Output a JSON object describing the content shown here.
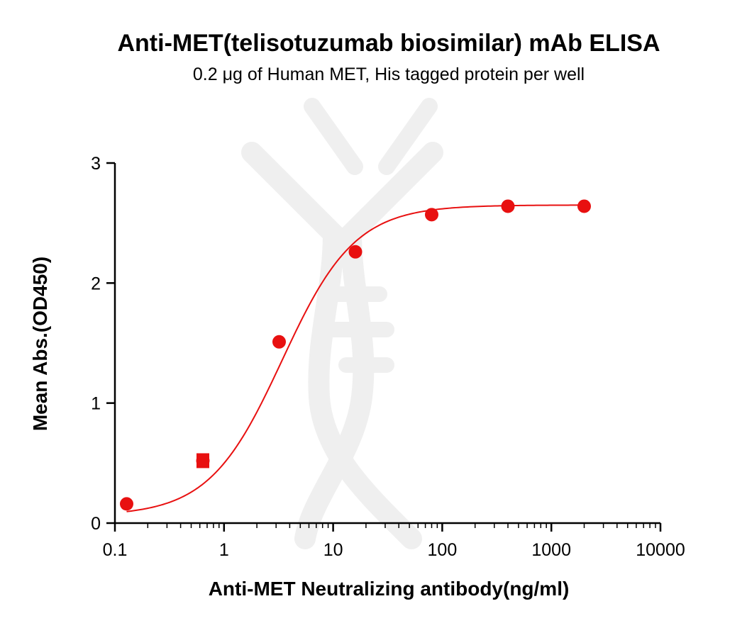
{
  "colors": {
    "series": "#e81010",
    "axis": "#000000",
    "watermark": "#efefef"
  },
  "chart_data": {
    "type": "scatter",
    "title": "Anti-MET(telisotuzumab biosimilar) mAb ELISA",
    "subtitle": "0.2 μg of Human MET, His tagged protein per well",
    "xlabel": "Anti-MET Neutralizing antibody(ng/ml)",
    "ylabel": "Mean Abs.(OD450)",
    "xscale": "log",
    "xlim": [
      0.1,
      10000
    ],
    "ylim": [
      0,
      3
    ],
    "grid": false,
    "x_ticks": [
      {
        "value": 0.1,
        "label": "0.1"
      },
      {
        "value": 1,
        "label": "1"
      },
      {
        "value": 10,
        "label": "10"
      },
      {
        "value": 100,
        "label": "100"
      },
      {
        "value": 1000,
        "label": "1000"
      },
      {
        "value": 10000,
        "label": "10000"
      }
    ],
    "y_ticks": [
      {
        "value": 0,
        "label": "0"
      },
      {
        "value": 1,
        "label": "1"
      },
      {
        "value": 2,
        "label": "2"
      },
      {
        "value": 3,
        "label": "3"
      }
    ],
    "series": [
      {
        "x": [
          0.128,
          0.64,
          3.2,
          16,
          80,
          400,
          2000
        ],
        "y": [
          0.16,
          0.52,
          1.51,
          2.26,
          2.57,
          2.64,
          2.64
        ],
        "error": [
          0.0,
          0.05,
          0.0,
          0.0,
          0.0,
          0.0,
          0.0
        ],
        "fit": {
          "model": "4PL",
          "bottom": 0.06,
          "top": 2.65,
          "ec50": 3.4,
          "hill": 1.3
        }
      }
    ]
  }
}
